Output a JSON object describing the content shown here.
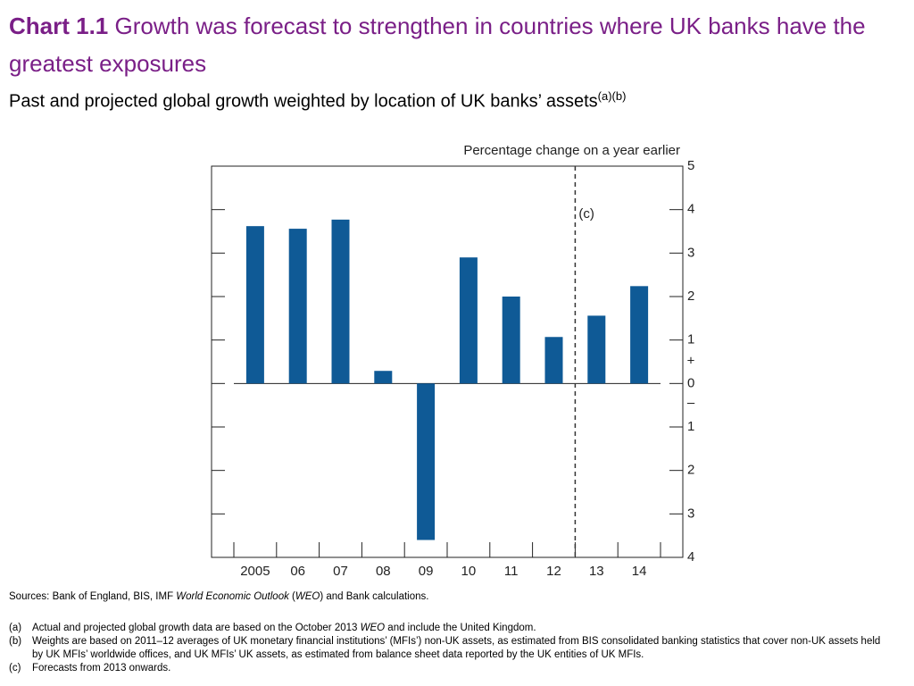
{
  "title_label": "Chart 1.1",
  "title": "Growth was forecast to strengthen in countries where UK banks have the greatest exposures",
  "subtitle": "Past and projected global growth weighted by location of UK banks’ assets",
  "subtitle_note": "(a)(b)",
  "sources": [
    "Sources: Bank of England, BIS, IMF ",
    "World Economic Outlook",
    " (",
    "WEO",
    ") and Bank calculations."
  ],
  "notes": [
    {
      "marker": "(a)",
      "text": [
        "Actual and projected global growth data are based on the October 2013 ",
        "WEO",
        " and include  the United Kingdom."
      ]
    },
    {
      "marker": "(b)",
      "text": [
        "Weights are based on 2011–12 averages of UK monetary financial institutions’ (MFIs’) non-UK assets, as estimated from BIS consolidated banking statistics that cover non-UK assets held by UK MFIs’ worldwide offices, and UK MFIs’ UK assets, as estimated from balance sheet data reported by the UK entities of UK MFIs."
      ]
    },
    {
      "marker": "(c)",
      "text": [
        "Forecasts from 2013 onwards."
      ]
    }
  ],
  "chart_data": {
    "type": "bar",
    "y_axis_label": "Percentage change on a year earlier",
    "annotation": "(c)",
    "sign_labels": [
      "+",
      "–"
    ],
    "categories": [
      "2005",
      "06",
      "07",
      "08",
      "09",
      "10",
      "11",
      "12",
      "13",
      "14"
    ],
    "values": [
      3.62,
      3.56,
      3.77,
      0.29,
      -3.6,
      2.9,
      2.0,
      1.07,
      1.56,
      2.24
    ],
    "color": "#0f5a96",
    "ylim": [
      -4,
      5
    ],
    "yticks": [
      {
        "value": -4,
        "label": "4"
      },
      {
        "value": -3,
        "label": "3"
      },
      {
        "value": -2,
        "label": "2"
      },
      {
        "value": -1,
        "label": "1"
      },
      0,
      1,
      2,
      3,
      4,
      5
    ],
    "grid": false
  }
}
